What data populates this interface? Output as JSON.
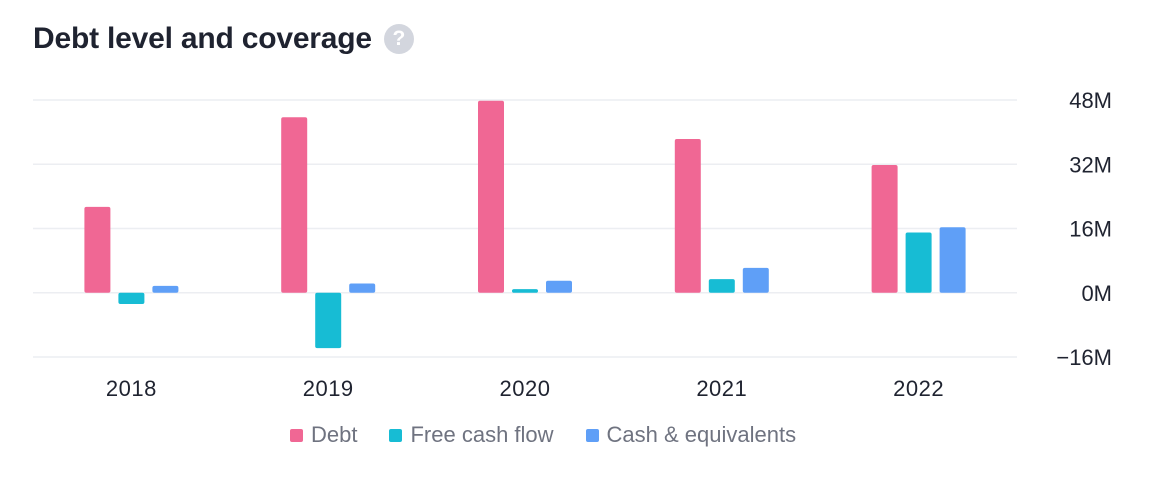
{
  "header": {
    "title": "Debt level and coverage",
    "help_glyph": "?"
  },
  "chart_data": {
    "type": "bar",
    "title": "Debt level and coverage",
    "categories": [
      "2018",
      "2019",
      "2020",
      "2021",
      "2022"
    ],
    "series": [
      {
        "name": "Debt",
        "color": "#f06794",
        "values": [
          21.4,
          43.7,
          47.8,
          38.3,
          31.8
        ]
      },
      {
        "name": "Free cash flow",
        "color": "#17bcd4",
        "values": [
          -2.8,
          -13.8,
          0.9,
          3.4,
          15.0
        ]
      },
      {
        "name": "Cash & equivalents",
        "color": "#5f9ff7",
        "values": [
          1.7,
          2.3,
          3.0,
          6.2,
          16.3
        ]
      }
    ],
    "ylim": [
      -16,
      48
    ],
    "y_ticks": [
      48,
      32,
      16,
      0,
      -16
    ],
    "y_tick_labels": [
      "48M",
      "32M",
      "16M",
      "0M",
      "−16M"
    ],
    "y_axis_position": "right",
    "grid": true,
    "legend": "bottom"
  }
}
